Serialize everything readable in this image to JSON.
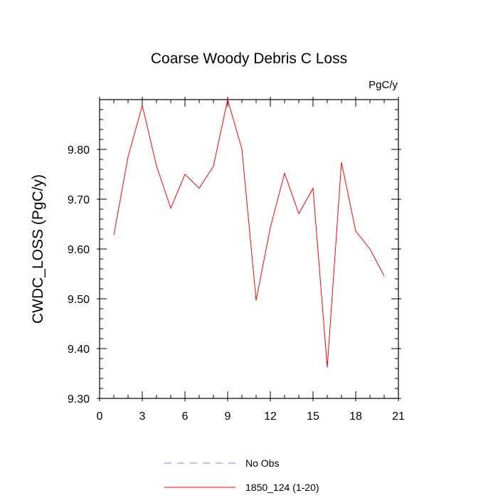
{
  "chart_data": {
    "type": "line",
    "title": "Coarse Woody Debris C Loss",
    "units_label": "PgC/y",
    "xlabel": "",
    "ylabel": "CWDC_LOSS  (PgC/y)",
    "xlim": [
      0,
      21
    ],
    "ylim": [
      9.3,
      9.9
    ],
    "x_ticks": [
      "0",
      "3",
      "6",
      "9",
      "12",
      "15",
      "18",
      "21"
    ],
    "y_ticks": [
      "9.30",
      "9.40",
      "9.50",
      "9.60",
      "9.70",
      "9.80"
    ],
    "grid": false,
    "legend_position": "bottom",
    "series": [
      {
        "name": "1850_124 (1-20)",
        "color": "#ff0000",
        "x": [
          1,
          2,
          3,
          4,
          5,
          6,
          7,
          8,
          9,
          10,
          11,
          12,
          13,
          14,
          15,
          16,
          17,
          18,
          19,
          20
        ],
        "y": [
          9.628,
          9.785,
          9.888,
          9.767,
          9.682,
          9.75,
          9.722,
          9.766,
          9.9,
          9.801,
          9.497,
          9.643,
          9.752,
          9.671,
          9.722,
          9.362,
          9.774,
          9.636,
          9.6,
          9.546
        ]
      }
    ],
    "legend": [
      {
        "name": "No Obs",
        "color": "#8080ff",
        "style": "dashed"
      },
      {
        "name": "1850_124 (1-20)",
        "color": "#ff0000",
        "style": "solid"
      }
    ]
  }
}
